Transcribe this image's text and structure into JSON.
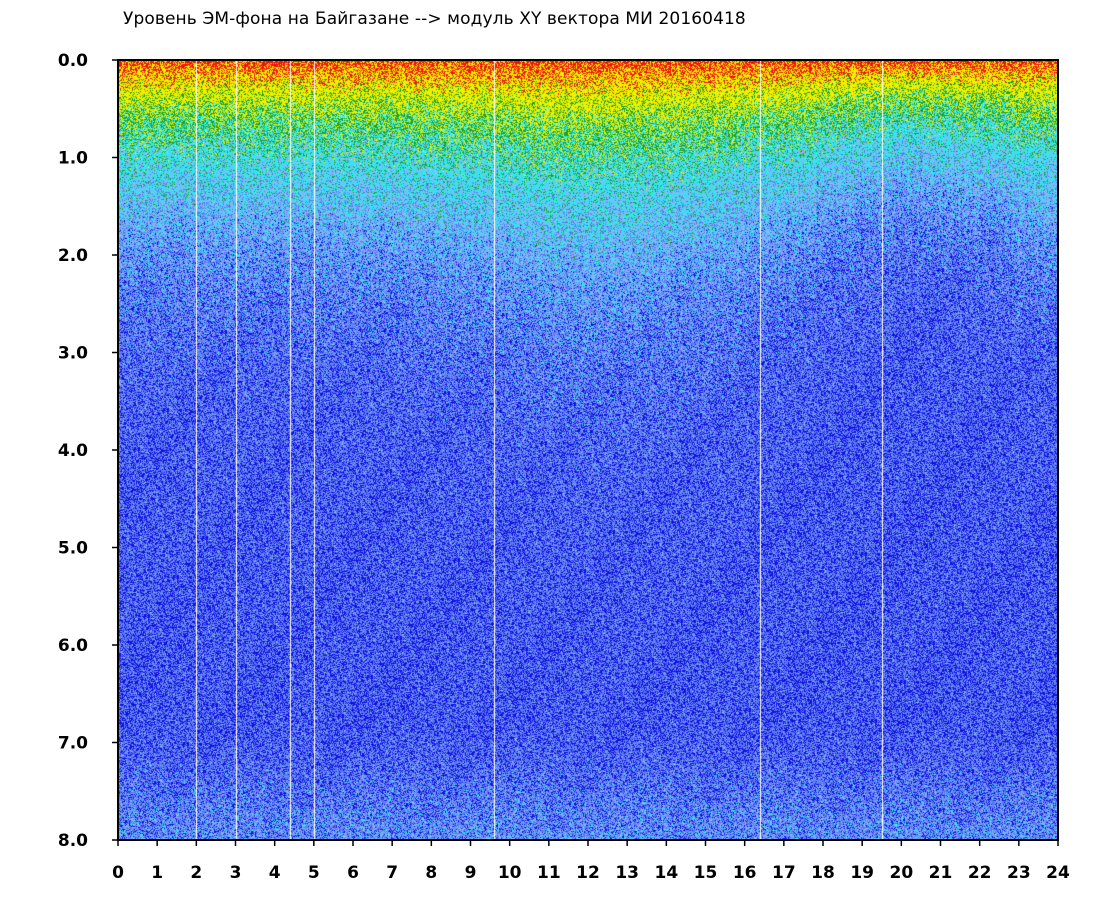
{
  "chart_data": {
    "type": "heatmap",
    "title": "Уровень ЭМ-фона на Байгазане  --> модуль XY вектора МИ  20160418",
    "xlabel": "",
    "ylabel": "",
    "x_range": [
      0,
      24
    ],
    "y_range": [
      0,
      8
    ],
    "y_axis_inverted": true,
    "x_ticks": [
      "0",
      "1",
      "2",
      "3",
      "4",
      "5",
      "6",
      "7",
      "8",
      "9",
      "10",
      "11",
      "12",
      "13",
      "14",
      "15",
      "16",
      "17",
      "18",
      "19",
      "20",
      "21",
      "22",
      "23",
      "24"
    ],
    "y_ticks": [
      "0.0",
      "1.0",
      "2.0",
      "3.0",
      "4.0",
      "5.0",
      "6.0",
      "7.0",
      "8.0"
    ],
    "grid": false,
    "legend": "none",
    "colormap": [
      "#ffffff",
      "#1010e0",
      "#5a78f0",
      "#8ab0f8",
      "#30e8f0",
      "#20a020",
      "#f0f000",
      "#f01010"
    ],
    "gap_columns_hours": [
      2.0,
      3.0,
      4.4,
      5.0,
      9.6,
      16.4,
      19.5
    ]
  }
}
